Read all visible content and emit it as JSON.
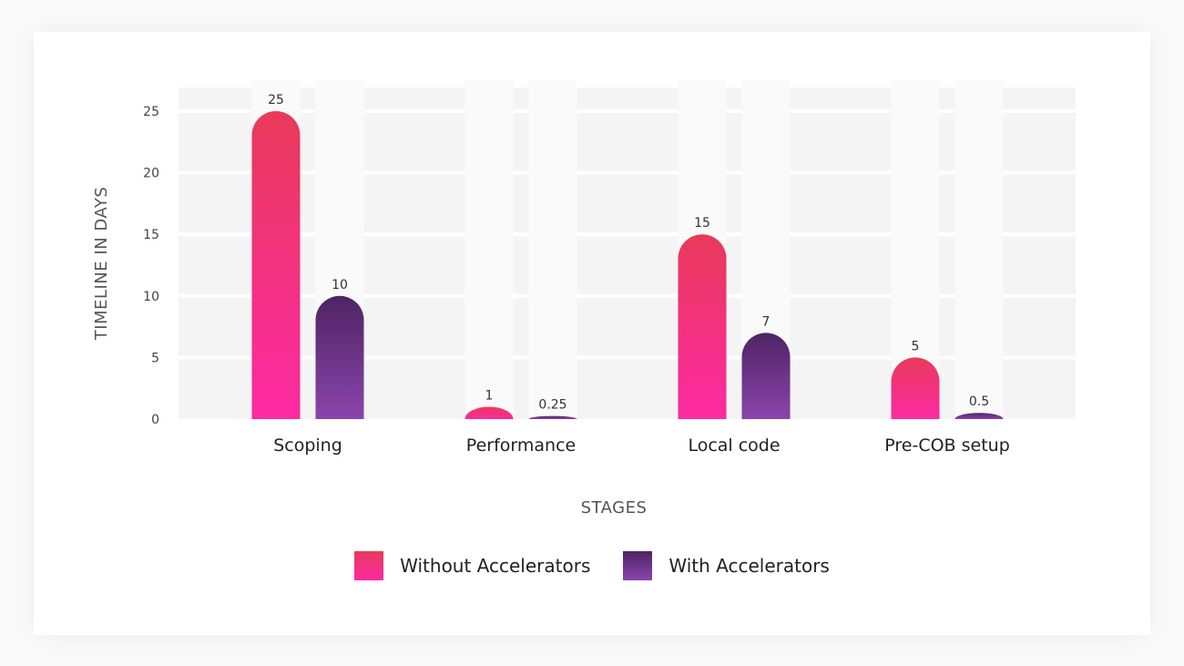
{
  "chart_data": {
    "type": "bar",
    "categories": [
      "Scoping",
      "Performance",
      "Local code",
      "Pre-COB setup"
    ],
    "series": [
      {
        "name": "Without Accelerators",
        "values": [
          25,
          1,
          15,
          5
        ],
        "labels": [
          "25",
          "1",
          "15",
          "5"
        ],
        "color_top": "#e83a5a",
        "color_bottom": "#fc2aa3"
      },
      {
        "name": "With Accelerators",
        "values": [
          10,
          0.25,
          7,
          0.5
        ],
        "labels": [
          "10",
          "0.25",
          "7",
          "0.5"
        ],
        "color_top": "#4e2463",
        "color_bottom": "#8b44ac"
      }
    ],
    "xlabel": "STAGES",
    "ylabel": "TIMELINE IN DAYS",
    "ylim": [
      0,
      27.5
    ],
    "yticks": [
      0,
      5,
      10,
      15,
      20,
      25
    ],
    "ytick_labels": [
      "0",
      "5",
      "10",
      "15",
      "20",
      "25"
    ],
    "grid": true,
    "legend_position": "bottom-center"
  }
}
